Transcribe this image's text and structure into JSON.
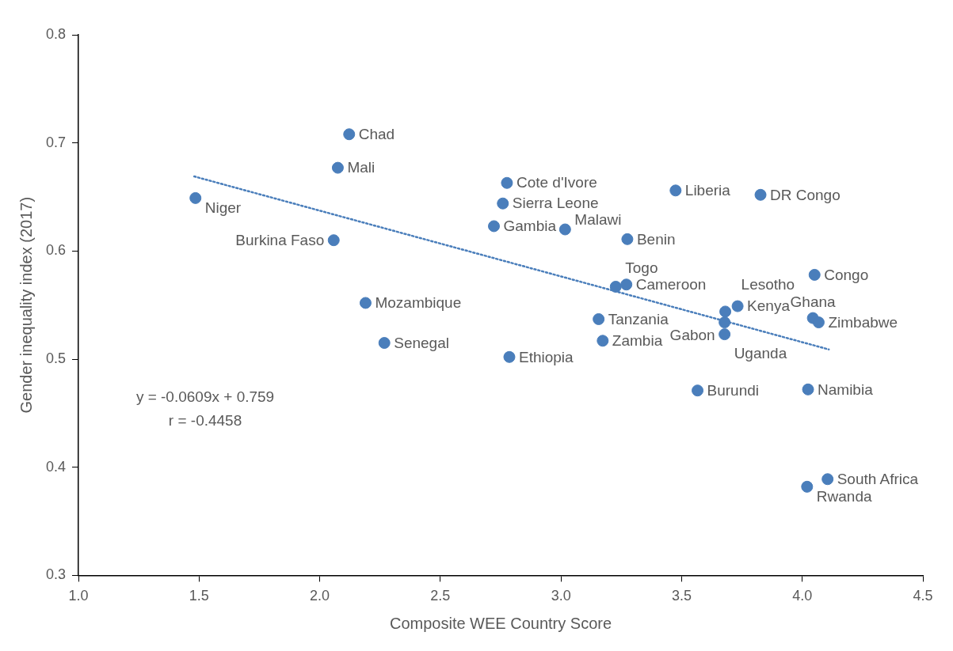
{
  "chart_data": {
    "type": "scatter",
    "xlabel": "Composite WEE Country Score",
    "ylabel": "Gender inequality index (2017)",
    "xlim": [
      1,
      4.5
    ],
    "xticks": [
      {
        "value": 1,
        "label": "1.0"
      },
      {
        "value": 1.5,
        "label": "1.5"
      },
      {
        "value": 2,
        "label": "2.0"
      },
      {
        "value": 2.5,
        "label": "2.5"
      },
      {
        "value": 3,
        "label": "3.0"
      },
      {
        "value": 3.5,
        "label": "3.5"
      },
      {
        "value": 4,
        "label": "4.0"
      },
      {
        "value": 4.5,
        "label": "4.5"
      }
    ],
    "ylim": [
      0.3,
      0.8
    ],
    "yticks": [
      0.3,
      0.4,
      0.5,
      0.6,
      0.7,
      0.8
    ],
    "grid": false,
    "legend": false,
    "annotations": [
      "y = -0.0609x + 0.759",
      "r = -0.4458"
    ],
    "series": [
      {
        "type": "scatter",
        "color": "#4a7ebb",
        "marker": "circle",
        "x": [
          1.485,
          2.122,
          2.075,
          2.058,
          2.19,
          2.268,
          2.776,
          2.759,
          2.722,
          3.017,
          2.786,
          3.275,
          3.271,
          3.227,
          3.156,
          3.173,
          3.475,
          3.827,
          4.051,
          3.732,
          3.681,
          3.678,
          3.678,
          4.044,
          4.068,
          3.566,
          4.024,
          4.105,
          4.02
        ],
        "values": [
          0.649,
          0.708,
          0.677,
          0.61,
          0.552,
          0.515,
          0.663,
          0.644,
          0.623,
          0.62,
          0.502,
          0.611,
          0.569,
          0.567,
          0.537,
          0.517,
          0.656,
          0.652,
          0.578,
          0.549,
          0.544,
          0.534,
          0.523,
          0.538,
          0.534,
          0.471,
          0.472,
          0.389,
          0.382
        ],
        "value_labels": [
          "Niger",
          "Chad",
          "Mali",
          "Burkina Faso",
          "Mozambique",
          "Senegal",
          "Cote d'Ivore",
          "Sierra Leone",
          "Gambia",
          "Malawi",
          "Ethiopia",
          "Benin",
          "Cameroon",
          "Togo",
          "Tanzania",
          "Zambia",
          "Liberia",
          "DR Congo",
          "Congo",
          "Kenya",
          "Lesotho",
          "Gabon",
          "Uganda",
          "Ghana",
          "Zimbabwe",
          "Burundi",
          "Namibia",
          "South Africa",
          "Rwanda"
        ]
      },
      {
        "type": "line",
        "color": "#4a7ebb",
        "marker": "none",
        "line_style": "dotted",
        "x": [
          1.48,
          4.11
        ],
        "values": [
          0.669,
          0.509
        ]
      }
    ]
  }
}
